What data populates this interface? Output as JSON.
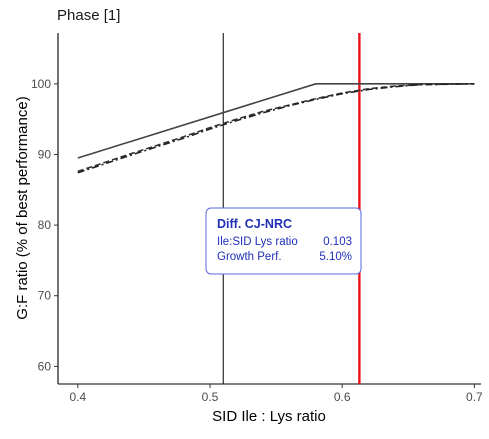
{
  "chart_data": {
    "type": "line",
    "title": "Phase [1]",
    "xlabel": "SID Ile : Lys ratio",
    "ylabel": "G:F ratio (% of best performance)",
    "xlim": [
      0.385,
      0.705
    ],
    "ylim": [
      57.5,
      107.2
    ],
    "x_ticks": [
      0.4,
      0.5,
      0.6,
      0.7
    ],
    "y_ticks": [
      60,
      70,
      80,
      90,
      100
    ],
    "x_tick_labels": [
      "0.4",
      "0.5",
      "0.6",
      "0.7"
    ],
    "y_tick_labels": [
      "60",
      "70",
      "80",
      "90",
      "100"
    ],
    "grid": false,
    "series": [
      {
        "style": "solid",
        "color": "#444444",
        "points": [
          [
            0.4,
            89.5
          ],
          [
            0.58,
            100.0
          ],
          [
            0.7,
            100.0
          ]
        ]
      },
      {
        "style": "dashed",
        "color": "#333333",
        "points": [
          [
            0.4,
            87.6
          ],
          [
            0.44,
            90.1
          ],
          [
            0.48,
            92.5
          ],
          [
            0.5,
            93.8
          ],
          [
            0.52,
            95.0
          ],
          [
            0.54,
            96.1
          ],
          [
            0.56,
            97.0
          ],
          [
            0.58,
            97.9
          ],
          [
            0.6,
            98.7
          ],
          [
            0.62,
            99.3
          ],
          [
            0.64,
            99.7
          ],
          [
            0.66,
            99.9
          ],
          [
            0.7,
            100.0
          ]
        ]
      },
      {
        "style": "dotdash",
        "color": "#222222",
        "points": [
          [
            0.4,
            87.4
          ],
          [
            0.44,
            89.9
          ],
          [
            0.48,
            92.3
          ],
          [
            0.5,
            93.6
          ],
          [
            0.52,
            94.8
          ],
          [
            0.54,
            95.9
          ],
          [
            0.56,
            96.9
          ],
          [
            0.58,
            97.8
          ],
          [
            0.6,
            98.6
          ],
          [
            0.62,
            99.2
          ],
          [
            0.64,
            99.6
          ],
          [
            0.66,
            99.9
          ],
          [
            0.7,
            100.0
          ]
        ]
      }
    ],
    "vlines": [
      {
        "x": 0.51,
        "color": "#000000"
      },
      {
        "x": 0.613,
        "color": "#e8121b"
      }
    ],
    "annotation": {
      "title": "Diff. CJ-NRC",
      "rows": [
        {
          "label": "Ile:SID Lys ratio",
          "value": "0.103"
        },
        {
          "label": "Growth Perf.",
          "value": "5.10%"
        }
      ],
      "text_color": "#1f2fb8",
      "border_color": "#5a6ae0"
    }
  }
}
